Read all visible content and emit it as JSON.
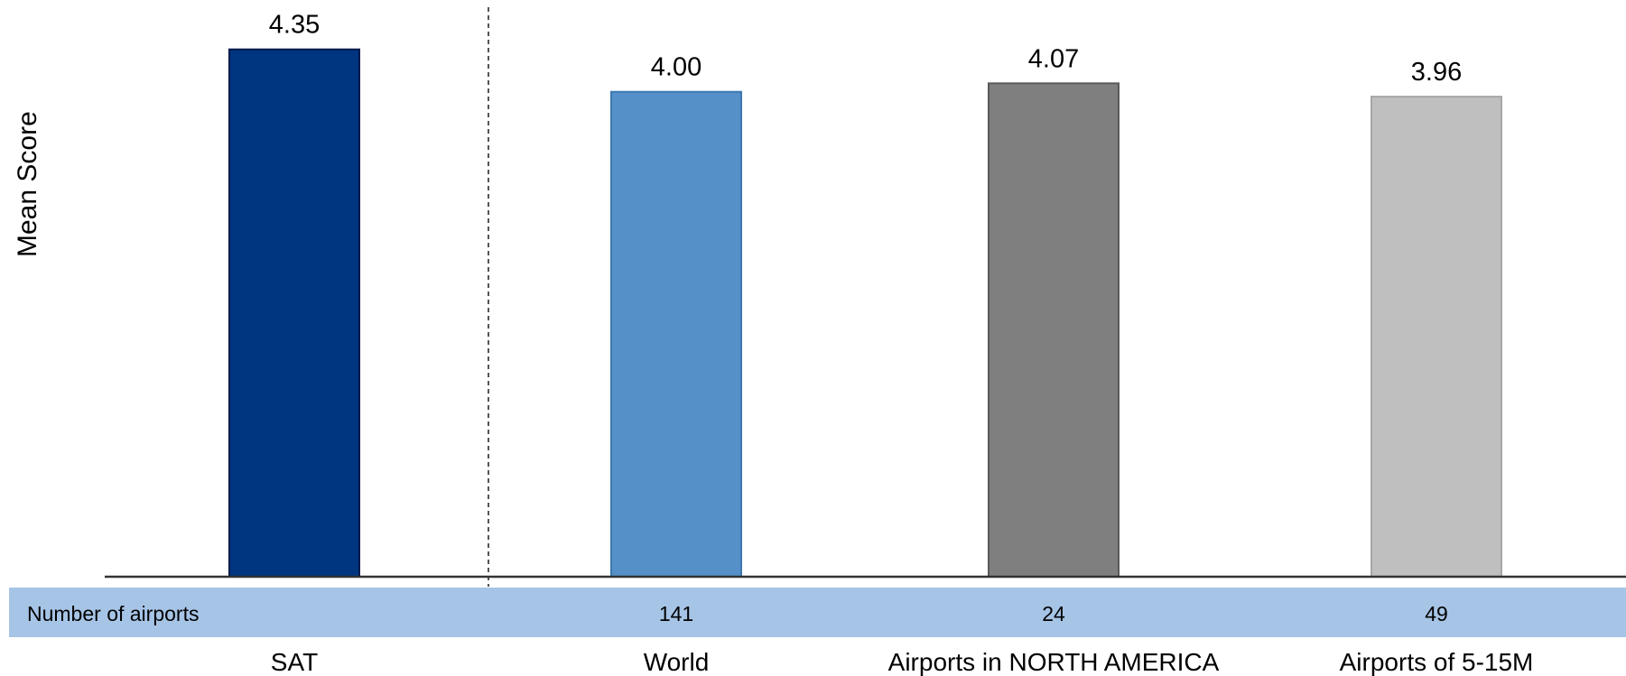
{
  "chart_data": {
    "type": "bar",
    "title": "",
    "xlabel": "",
    "ylabel": "Mean Score",
    "categories": [
      "SAT",
      "World",
      "Airports in NORTH AMERICA",
      "Airports of 5-15M"
    ],
    "values": [
      4.35,
      4.0,
      4.07,
      3.96
    ],
    "value_labels": [
      "4.35",
      "4.00",
      "4.07",
      "3.96"
    ],
    "colors": [
      "#003580",
      "#5591c8",
      "#7f7f7f",
      "#bfbfbf"
    ],
    "bar_border_colors": [
      "#001a4d",
      "#3d78b0",
      "#5a5a5a",
      "#a6a6a6"
    ],
    "ylim": [
      0,
      4.75
    ],
    "grid": false,
    "legend": "none",
    "separator_after_category": "SAT",
    "table_row": {
      "label": "Number of airports",
      "values": [
        "",
        "141",
        "24",
        "49"
      ],
      "background": "#a6c4e6"
    }
  }
}
